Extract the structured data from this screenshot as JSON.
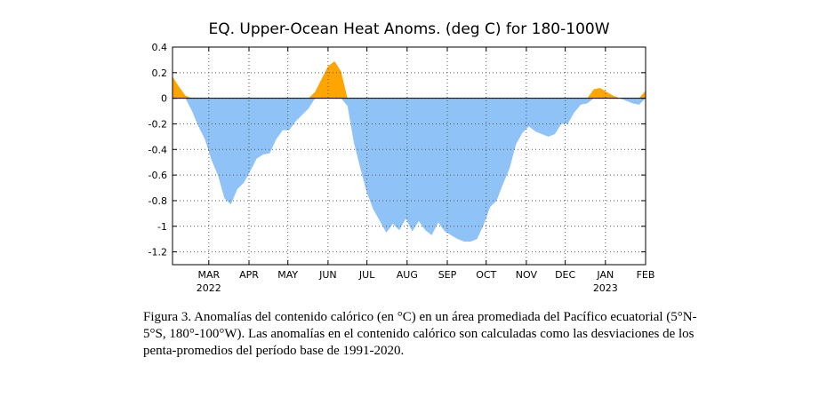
{
  "chart_data": {
    "type": "area",
    "title": "EQ. Upper-Ocean Heat Anoms. (deg C) for 180-100W",
    "xlabel": "",
    "ylabel": "",
    "ylim": [
      -1.3,
      0.4
    ],
    "yticks": [
      0.4,
      0.2,
      0,
      -0.2,
      -0.4,
      -0.6,
      -0.8,
      -1,
      -1.2
    ],
    "ytick_labels": [
      "0.4",
      "0.2",
      "0",
      "-0.2",
      "-0.4",
      "-0.6",
      "-0.8",
      "-1",
      "-1.2"
    ],
    "xlim": [
      "2022-02-01",
      "2023-02-01"
    ],
    "xticks": [
      {
        "date": "2022-03-01",
        "label": "MAR",
        "sub": "2022"
      },
      {
        "date": "2022-04-01",
        "label": "APR",
        "sub": ""
      },
      {
        "date": "2022-05-01",
        "label": "MAY",
        "sub": ""
      },
      {
        "date": "2022-06-01",
        "label": "JUN",
        "sub": ""
      },
      {
        "date": "2022-07-01",
        "label": "JUL",
        "sub": ""
      },
      {
        "date": "2022-08-01",
        "label": "AUG",
        "sub": ""
      },
      {
        "date": "2022-09-01",
        "label": "SEP",
        "sub": ""
      },
      {
        "date": "2022-10-01",
        "label": "OCT",
        "sub": ""
      },
      {
        "date": "2022-11-01",
        "label": "NOV",
        "sub": ""
      },
      {
        "date": "2022-12-01",
        "label": "DEC",
        "sub": ""
      },
      {
        "date": "2023-01-01",
        "label": "JAN",
        "sub": "2023"
      },
      {
        "date": "2023-02-01",
        "label": "FEB",
        "sub": ""
      }
    ],
    "grid": true,
    "positive_color": "#ffa500",
    "negative_color": "#8fc3f7",
    "series": [
      {
        "dates": [
          "2022-02-01",
          "2022-02-06",
          "2022-02-11",
          "2022-02-16",
          "2022-02-21",
          "2022-02-26",
          "2022-03-03",
          "2022-03-08",
          "2022-03-13",
          "2022-03-18",
          "2022-03-23",
          "2022-03-28",
          "2022-04-02",
          "2022-04-07",
          "2022-04-12",
          "2022-04-17",
          "2022-04-22",
          "2022-04-27",
          "2022-05-02",
          "2022-05-07",
          "2022-05-12",
          "2022-05-17",
          "2022-05-22",
          "2022-05-27",
          "2022-06-01",
          "2022-06-06",
          "2022-06-11",
          "2022-06-16",
          "2022-06-21",
          "2022-06-26",
          "2022-07-01",
          "2022-07-06",
          "2022-07-11",
          "2022-07-16",
          "2022-07-21",
          "2022-07-26",
          "2022-07-31",
          "2022-08-05",
          "2022-08-10",
          "2022-08-15",
          "2022-08-20",
          "2022-08-25",
          "2022-08-30",
          "2022-09-04",
          "2022-09-09",
          "2022-09-14",
          "2022-09-19",
          "2022-09-24",
          "2022-09-29",
          "2022-10-04",
          "2022-10-09",
          "2022-10-14",
          "2022-10-19",
          "2022-10-24",
          "2022-10-29",
          "2022-11-03",
          "2022-11-08",
          "2022-11-13",
          "2022-11-18",
          "2022-11-23",
          "2022-11-28",
          "2022-12-03",
          "2022-12-08",
          "2022-12-13",
          "2022-12-18",
          "2022-12-23",
          "2022-12-28",
          "2023-01-02",
          "2023-01-07",
          "2023-01-12",
          "2023-01-17",
          "2023-01-22",
          "2023-01-27",
          "2023-02-01"
        ],
        "values": [
          0.17,
          0.09,
          0.02,
          -0.1,
          -0.22,
          -0.32,
          -0.48,
          -0.6,
          -0.78,
          -0.83,
          -0.71,
          -0.66,
          -0.57,
          -0.47,
          -0.44,
          -0.43,
          -0.32,
          -0.25,
          -0.25,
          -0.18,
          -0.13,
          -0.08,
          0.05,
          0.15,
          0.25,
          0.29,
          0.21,
          -0.06,
          -0.35,
          -0.55,
          -0.74,
          -0.87,
          -0.96,
          -1.05,
          -0.98,
          -1.03,
          -0.94,
          -1.04,
          -0.96,
          -1.03,
          -1.07,
          -0.97,
          -1.04,
          -1.07,
          -1.1,
          -1.12,
          -1.12,
          -1.1,
          -0.99,
          -0.85,
          -0.8,
          -0.67,
          -0.55,
          -0.36,
          -0.27,
          -0.22,
          -0.26,
          -0.28,
          -0.3,
          -0.28,
          -0.2,
          -0.2,
          -0.11,
          -0.05,
          -0.04,
          0.07,
          0.08,
          0.05,
          0.02,
          0.0,
          -0.02,
          -0.04,
          -0.05,
          0.06
        ]
      }
    ]
  },
  "caption": "Figura 3. Anomalías del contenido calórico (en °C) en un área promediada del Pacífico ecuatorial (5°N-5°S, 180°-100°W). Las anomalías en el contenido calórico son calculadas como las desviaciones de los penta-promedios del período base de 1991-2020."
}
